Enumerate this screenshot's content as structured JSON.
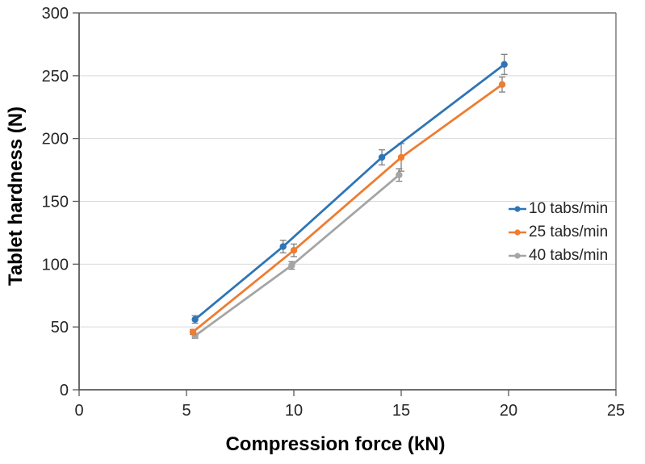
{
  "chart_data": {
    "type": "line",
    "title": "",
    "xlabel": "Compression force (kN)",
    "ylabel": "Tablet hardness (N)",
    "xlim": [
      0,
      25
    ],
    "ylim": [
      0,
      300
    ],
    "x_ticks": [
      0,
      5,
      10,
      15,
      20,
      25
    ],
    "y_ticks": [
      0,
      50,
      100,
      150,
      200,
      250,
      300
    ],
    "grid": "horizontal-only",
    "legend_position": "right-middle",
    "error_bar_color": "#7F7F7F",
    "series": [
      {
        "name": "10 tabs/min",
        "color": "#2E75B6",
        "marker": "circle",
        "x": [
          5.4,
          9.5,
          14.1,
          19.8
        ],
        "y": [
          56,
          114,
          185,
          259
        ],
        "yerr": [
          3,
          5,
          6,
          8
        ]
      },
      {
        "name": "25 tabs/min",
        "color": "#ED7D31",
        "marker": "circle",
        "x": [
          5.3,
          10.0,
          15.0,
          19.7
        ],
        "y": [
          46,
          111,
          185,
          243
        ],
        "yerr": [
          2,
          5,
          11,
          6
        ]
      },
      {
        "name": "40 tabs/min",
        "color": "#A5A5A5",
        "marker": "circle",
        "x": [
          5.4,
          9.9,
          14.9
        ],
        "y": [
          43,
          99,
          171
        ],
        "yerr": [
          2,
          3,
          5
        ]
      }
    ]
  }
}
